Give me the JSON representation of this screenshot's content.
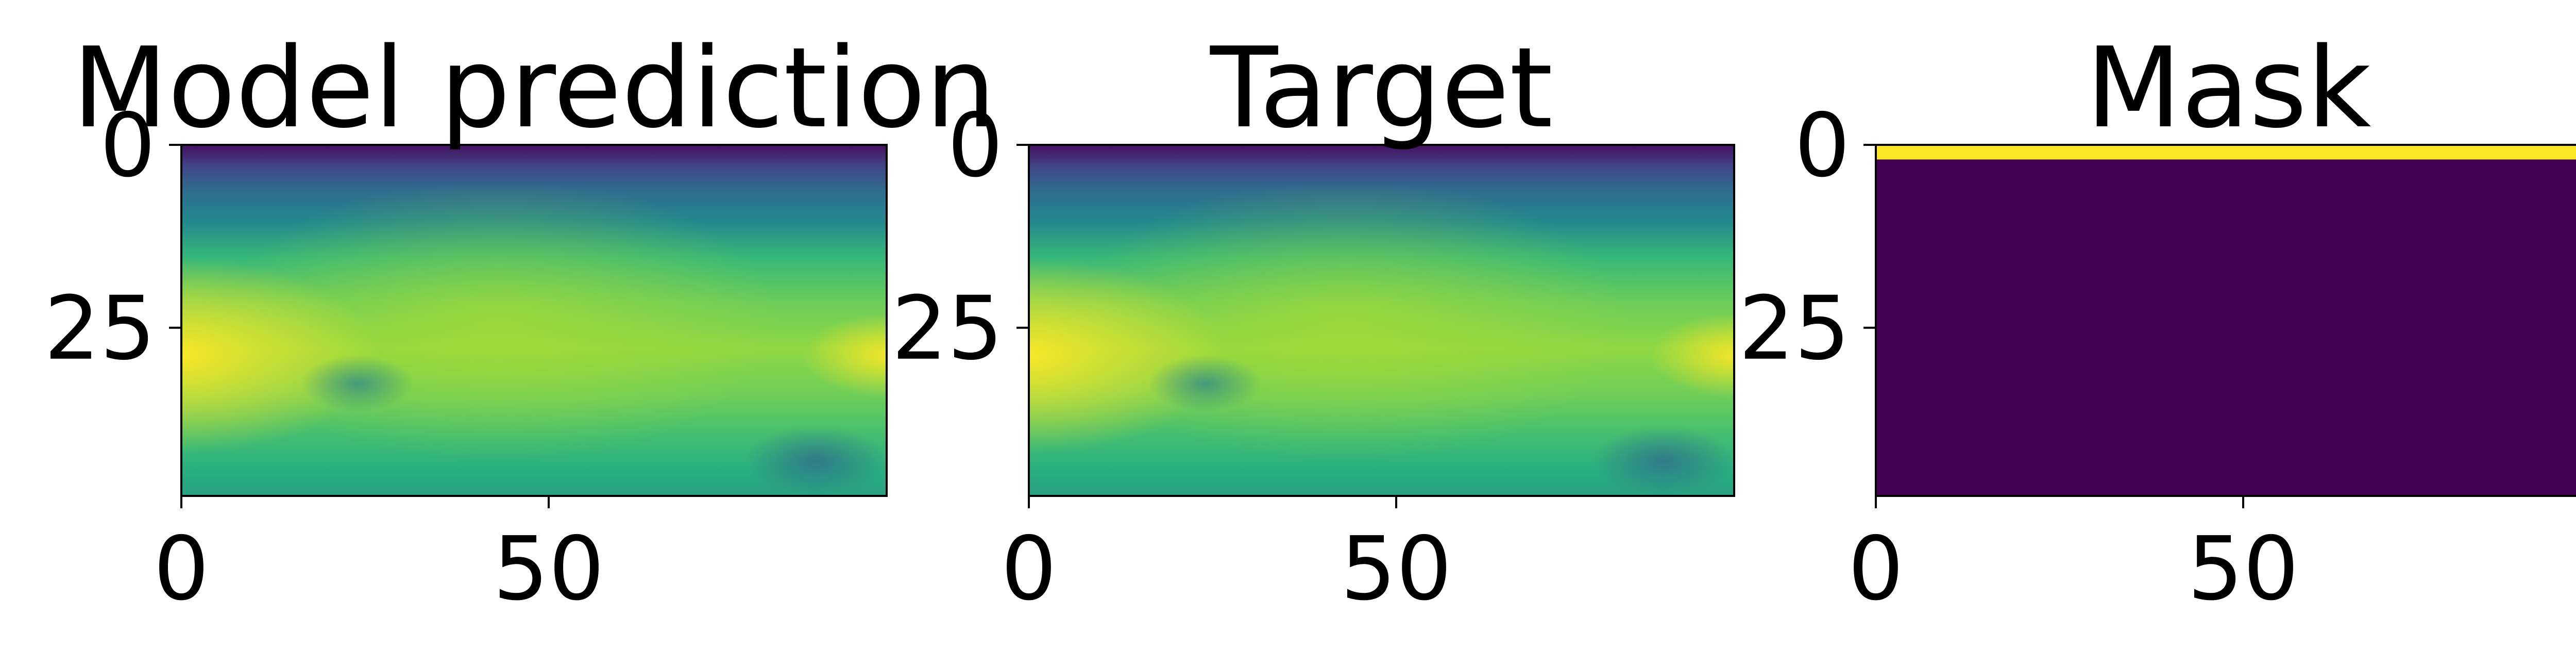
{
  "chart_data": [
    {
      "type": "heatmap",
      "title": "Model prediction",
      "xlabel": "",
      "ylabel": "",
      "x_ticks": [
        0,
        50
      ],
      "y_ticks": [
        0,
        25
      ],
      "xlim": [
        0,
        96
      ],
      "ylim": [
        48,
        0
      ],
      "colormap": "viridis",
      "grid": false,
      "field": "prediction"
    },
    {
      "type": "heatmap",
      "title": "Target",
      "xlabel": "",
      "ylabel": "",
      "x_ticks": [
        0,
        50
      ],
      "y_ticks": [
        0,
        25
      ],
      "xlim": [
        0,
        96
      ],
      "ylim": [
        48,
        0
      ],
      "colormap": "viridis",
      "grid": false,
      "field": "target"
    },
    {
      "type": "heatmap",
      "title": "Mask",
      "xlabel": "",
      "ylabel": "",
      "x_ticks": [
        0,
        50
      ],
      "y_ticks": [
        0,
        25
      ],
      "xlim": [
        0,
        96
      ],
      "ylim": [
        48,
        0
      ],
      "colormap": "viridis",
      "grid": false,
      "field": "mask",
      "mask_rows_value_1": [
        0,
        2
      ],
      "mask_colors": {
        "zero": "#440154",
        "one": "#fde725"
      }
    }
  ]
}
